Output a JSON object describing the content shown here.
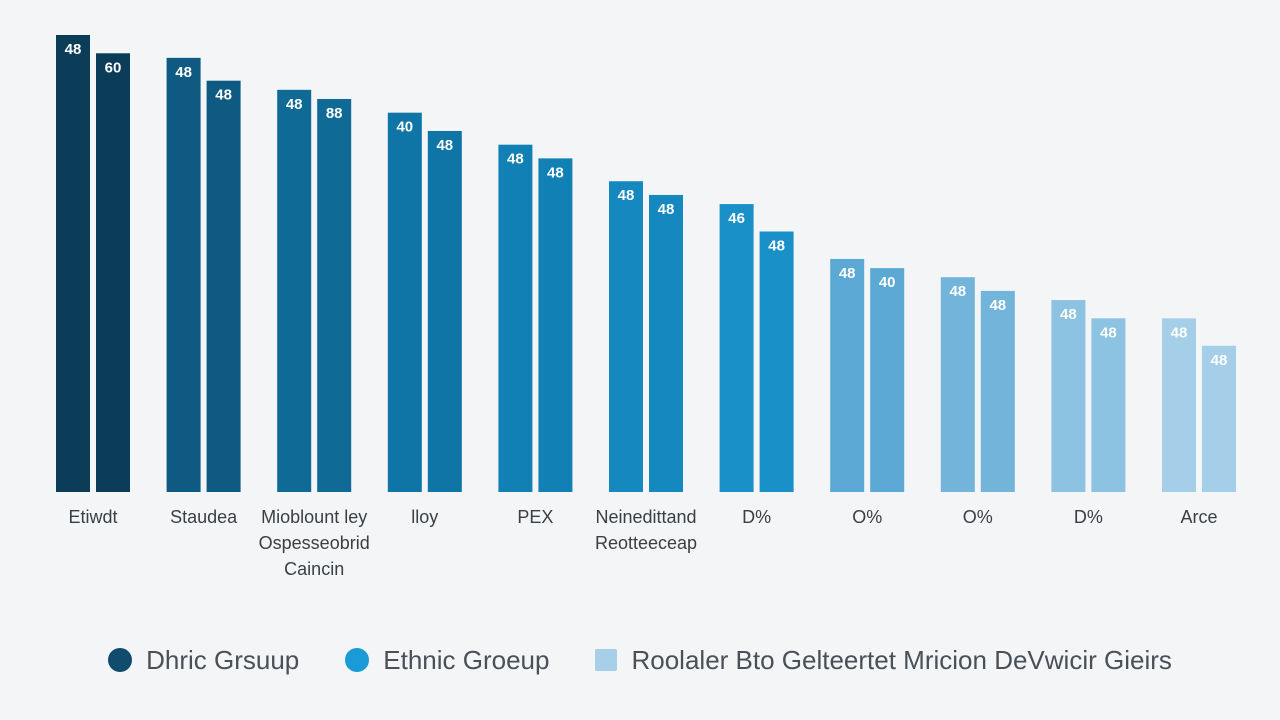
{
  "chart_data": {
    "type": "bar",
    "title": "",
    "xlabel": "",
    "ylabel": "",
    "ylim": [
      0,
      100
    ],
    "grid": false,
    "legend_position": "bottom",
    "categories": [
      [
        "Etiwdt"
      ],
      [
        "Staudea"
      ],
      [
        "Mioblount ley",
        "Ospesseobrid",
        "Caincin"
      ],
      [
        "lloy"
      ],
      [
        "PEX"
      ],
      [
        "Neinedittand",
        "Reotteeceap"
      ],
      [
        "D%"
      ],
      [
        "O%"
      ],
      [
        "O%"
      ],
      [
        "D%"
      ],
      [
        "Arce"
      ]
    ],
    "series": [
      {
        "name": "Dhric Grsuup",
        "values": [
          100,
          95,
          88,
          83,
          76,
          68,
          63,
          51,
          47,
          42,
          38
        ],
        "labels": [
          "48",
          "48",
          "48",
          "40",
          "48",
          "48",
          "46",
          "48",
          "48",
          "48",
          "48"
        ]
      },
      {
        "name": "Ethnic Groeup",
        "values": [
          96,
          90,
          86,
          79,
          73,
          65,
          57,
          49,
          44,
          38,
          32
        ],
        "labels": [
          "60",
          "48",
          "88",
          "48",
          "48",
          "48",
          "48",
          "40",
          "48",
          "48",
          "48"
        ]
      }
    ],
    "bar_colors": [
      [
        "#0b3d58",
        "#0b3d58"
      ],
      [
        "#0e5a82",
        "#0e5a82"
      ],
      [
        "#0f6a96",
        "#0f6a96"
      ],
      [
        "#0f74a6",
        "#0f74a6"
      ],
      [
        "#1080b5",
        "#1080b5"
      ],
      [
        "#1588c0",
        "#1588c0"
      ],
      [
        "#1a90c8",
        "#1a90c8"
      ],
      [
        "#5ba8d4",
        "#5ba8d4"
      ],
      [
        "#72b4da",
        "#72b4da"
      ],
      [
        "#8cc2e2",
        "#8cc2e2"
      ],
      [
        "#a5cfe8",
        "#a5cfe8"
      ]
    ]
  },
  "legend": [
    {
      "label": "Dhric Grsuup",
      "color": "#0f4c6e",
      "shape": "circle"
    },
    {
      "label": "Ethnic Groeup",
      "color": "#1a9ad6",
      "shape": "circle"
    },
    {
      "label": "Roolaler Bto Gelteertet  Mricion DeVwicir Gieirs",
      "color": "#a8cfe8",
      "shape": "square"
    }
  ]
}
